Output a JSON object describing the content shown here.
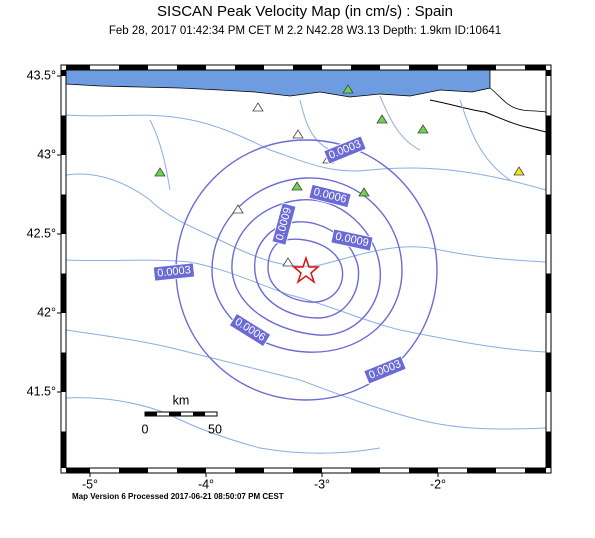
{
  "header": {
    "title": "SISCAN Peak Velocity Map (in cm/s) : Spain",
    "subtitle": "Feb 28, 2017 01:42:34 PM CET   M 2.2   N42.28 W3.13   Depth: 1.9km   ID:10641"
  },
  "map": {
    "lon_ticks": [
      {
        "value": -5,
        "label": "-5°"
      },
      {
        "value": -4,
        "label": "-4°"
      },
      {
        "value": -3,
        "label": "-3°"
      },
      {
        "value": -2,
        "label": "-2°"
      }
    ],
    "lat_ticks": [
      {
        "value": 43.5,
        "label": "43.5°"
      },
      {
        "value": 43,
        "label": "43°"
      },
      {
        "value": 42.5,
        "label": "42.5°"
      },
      {
        "value": 42,
        "label": "42°"
      },
      {
        "value": 41.5,
        "label": "41.5°"
      }
    ],
    "contour_labels": [
      "0.0003",
      "0.0006",
      "0.0009",
      "0.0009",
      "0.0003",
      "0.0006",
      "0.0003"
    ],
    "scale": {
      "unit": "km",
      "start": 0,
      "end": 50
    }
  },
  "footer": "Map Version 6 Processed 2017-06-21 08:50:07 PM CEST"
}
